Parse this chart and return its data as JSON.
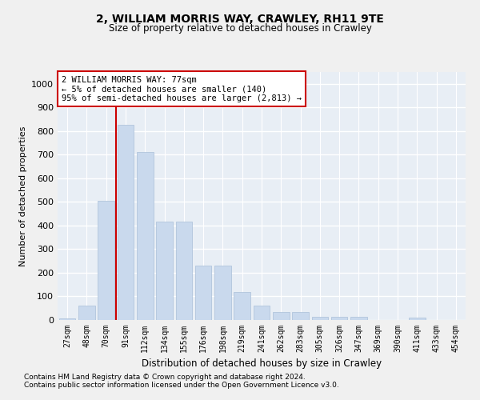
{
  "title1": "2, WILLIAM MORRIS WAY, CRAWLEY, RH11 9TE",
  "title2": "Size of property relative to detached houses in Crawley",
  "xlabel": "Distribution of detached houses by size in Crawley",
  "ylabel": "Number of detached properties",
  "categories": [
    "27sqm",
    "48sqm",
    "70sqm",
    "91sqm",
    "112sqm",
    "134sqm",
    "155sqm",
    "176sqm",
    "198sqm",
    "219sqm",
    "241sqm",
    "262sqm",
    "283sqm",
    "305sqm",
    "326sqm",
    "347sqm",
    "369sqm",
    "390sqm",
    "411sqm",
    "433sqm",
    "454sqm"
  ],
  "values": [
    8,
    60,
    505,
    825,
    710,
    415,
    415,
    230,
    230,
    120,
    60,
    35,
    35,
    15,
    15,
    15,
    0,
    0,
    10,
    0,
    0
  ],
  "bar_color": "#c9d9ed",
  "bar_edge_color": "#aabfd8",
  "vline_color": "#cc0000",
  "annotation_text": "2 WILLIAM MORRIS WAY: 77sqm\n← 5% of detached houses are smaller (140)\n95% of semi-detached houses are larger (2,813) →",
  "annotation_box_color": "#ffffff",
  "annotation_box_edge": "#cc0000",
  "ylim": [
    0,
    1050
  ],
  "yticks": [
    0,
    100,
    200,
    300,
    400,
    500,
    600,
    700,
    800,
    900,
    1000
  ],
  "bg_color": "#e8eef5",
  "grid_color": "#ffffff",
  "fig_bg_color": "#f0f0f0",
  "footnote1": "Contains HM Land Registry data © Crown copyright and database right 2024.",
  "footnote2": "Contains public sector information licensed under the Open Government Licence v3.0."
}
